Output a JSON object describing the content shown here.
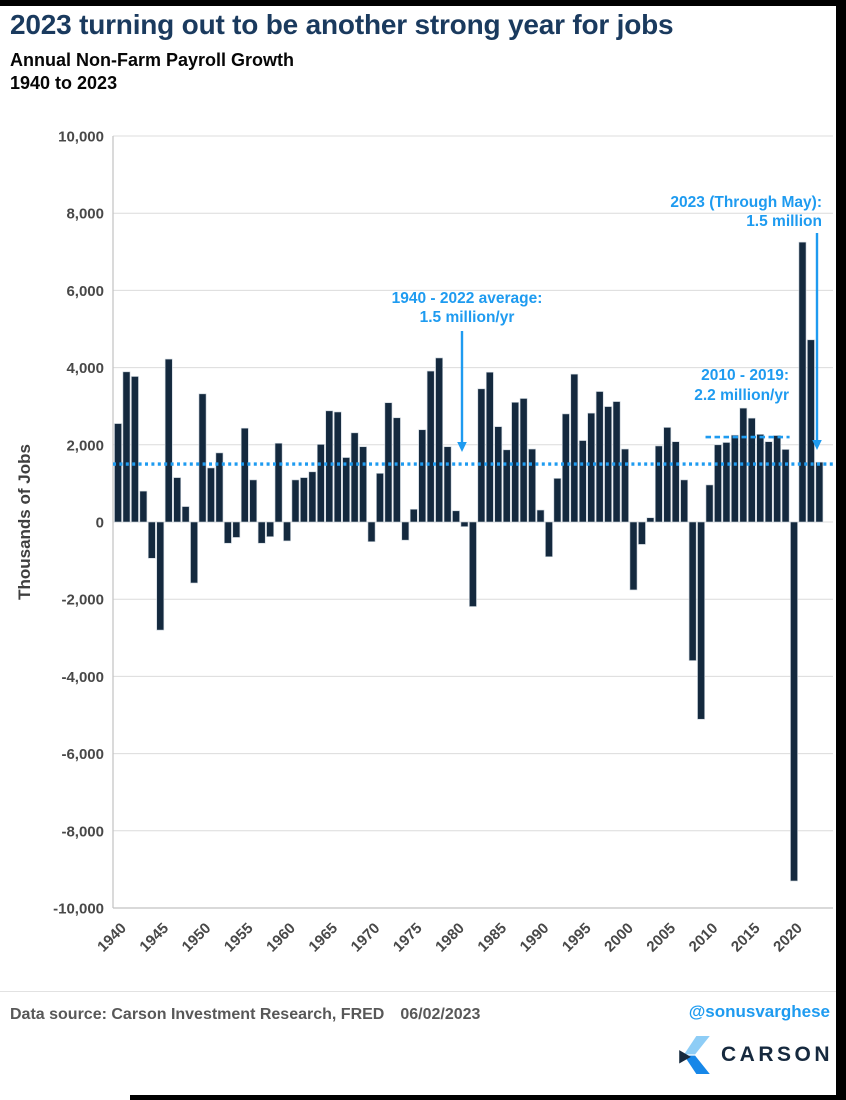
{
  "chart_data": {
    "type": "bar",
    "title": "2023 turning out to be another strong year for jobs",
    "subtitle_line1": "Annual Non-Farm Payroll Growth",
    "subtitle_line2": "1940 to 2023",
    "ylabel": "Thousands of Jobs",
    "ylim": [
      -10000,
      10000
    ],
    "ytick_step": 2000,
    "grid": true,
    "bar_color": "#14293e",
    "accent_blue": "#1e9bf0",
    "xticks": [
      1940,
      1945,
      1950,
      1955,
      1960,
      1965,
      1970,
      1975,
      1980,
      1985,
      1990,
      1995,
      2000,
      2005,
      2010,
      2015,
      2020
    ],
    "years": [
      1940,
      1941,
      1942,
      1943,
      1944,
      1945,
      1946,
      1947,
      1948,
      1949,
      1950,
      1951,
      1952,
      1953,
      1954,
      1955,
      1956,
      1957,
      1958,
      1959,
      1960,
      1961,
      1962,
      1963,
      1964,
      1965,
      1966,
      1967,
      1968,
      1969,
      1970,
      1971,
      1972,
      1973,
      1974,
      1975,
      1976,
      1977,
      1978,
      1979,
      1980,
      1981,
      1982,
      1983,
      1984,
      1985,
      1986,
      1987,
      1988,
      1989,
      1990,
      1991,
      1992,
      1993,
      1994,
      1995,
      1996,
      1997,
      1998,
      1999,
      2000,
      2001,
      2002,
      2003,
      2004,
      2005,
      2006,
      2007,
      2008,
      2009,
      2010,
      2011,
      2012,
      2013,
      2014,
      2015,
      2016,
      2017,
      2018,
      2019,
      2020,
      2021,
      2022,
      2023
    ],
    "values": [
      2550,
      3890,
      3770,
      800,
      -940,
      -2800,
      4220,
      1150,
      400,
      -1580,
      3320,
      1400,
      1790,
      -550,
      -400,
      2430,
      1090,
      -550,
      -380,
      2040,
      -490,
      1090,
      1150,
      1300,
      2010,
      2880,
      2850,
      1670,
      2310,
      1950,
      -510,
      1260,
      3090,
      2700,
      -470,
      330,
      2390,
      3910,
      4250,
      1950,
      290,
      -120,
      -2190,
      3450,
      3880,
      2470,
      1870,
      3100,
      3200,
      1890,
      310,
      -900,
      1130,
      2800,
      3830,
      2110,
      2820,
      3380,
      2990,
      3120,
      1890,
      -1760,
      -580,
      110,
      1970,
      2450,
      2080,
      1090,
      -3590,
      -5110,
      960,
      2000,
      2060,
      2250,
      2950,
      2690,
      2270,
      2080,
      2240,
      1880,
      -9300,
      7250,
      4720,
      1550
    ],
    "avg_line": {
      "value": 1500,
      "style": "dotted",
      "label_line1": "1940 - 2022 average:",
      "label_line2": "1.5 million/yr"
    },
    "decade_line": {
      "value": 2200,
      "x_start": 2010,
      "x_end": 2019,
      "style": "dashed",
      "label_line1": "2010 - 2019:",
      "label_line2": "2.2 million/yr"
    },
    "latest_annotation": {
      "label_line1": "2023 (Through May):",
      "label_line2": "1.5 million"
    }
  },
  "footer": {
    "source": "Data source: Carson Investment Research, FRED",
    "date": "06/02/2023",
    "handle": "@sonusvarghese",
    "logo_text": "CARSON"
  }
}
